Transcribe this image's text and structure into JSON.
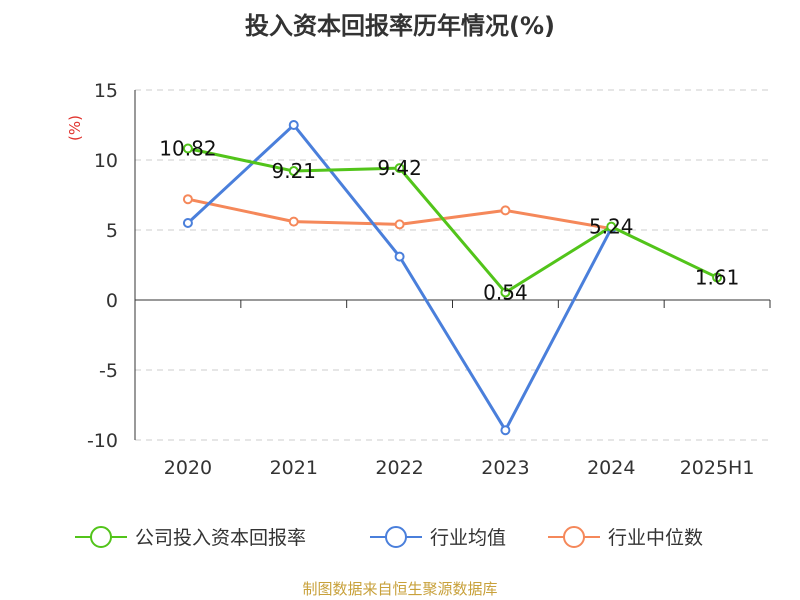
{
  "chart_data": {
    "type": "line",
    "title": "投入资本回报率历年情况(%)",
    "ylabel": "(%)",
    "categories": [
      "2020",
      "2021",
      "2022",
      "2023",
      "2024",
      "2025H1"
    ],
    "ylim": [
      -10,
      15
    ],
    "yticks": [
      15,
      10,
      5,
      0,
      -5,
      -10
    ],
    "grid": true,
    "legend_position": "bottom",
    "series": [
      {
        "name": "公司投入资本回报率",
        "color": "#52c41a",
        "values": [
          10.82,
          9.21,
          9.42,
          0.54,
          5.24,
          1.61
        ],
        "labels": [
          "10.82",
          "9.21",
          "9.42",
          "0.54",
          "5.24",
          "1.61"
        ]
      },
      {
        "name": "行业均值",
        "color": "#4a7fdb",
        "values": [
          5.5,
          12.5,
          3.1,
          -9.3,
          5.1,
          null
        ]
      },
      {
        "name": "行业中位数",
        "color": "#f5885a",
        "values": [
          7.2,
          5.6,
          5.4,
          6.4,
          5.1,
          null
        ]
      }
    ]
  },
  "source_text": "制图数据来自恒生聚源数据库",
  "colors": {
    "axis": "#333333",
    "grid": "#cccccc",
    "ylabel": "#e0322d",
    "source": "#c8a13b"
  }
}
